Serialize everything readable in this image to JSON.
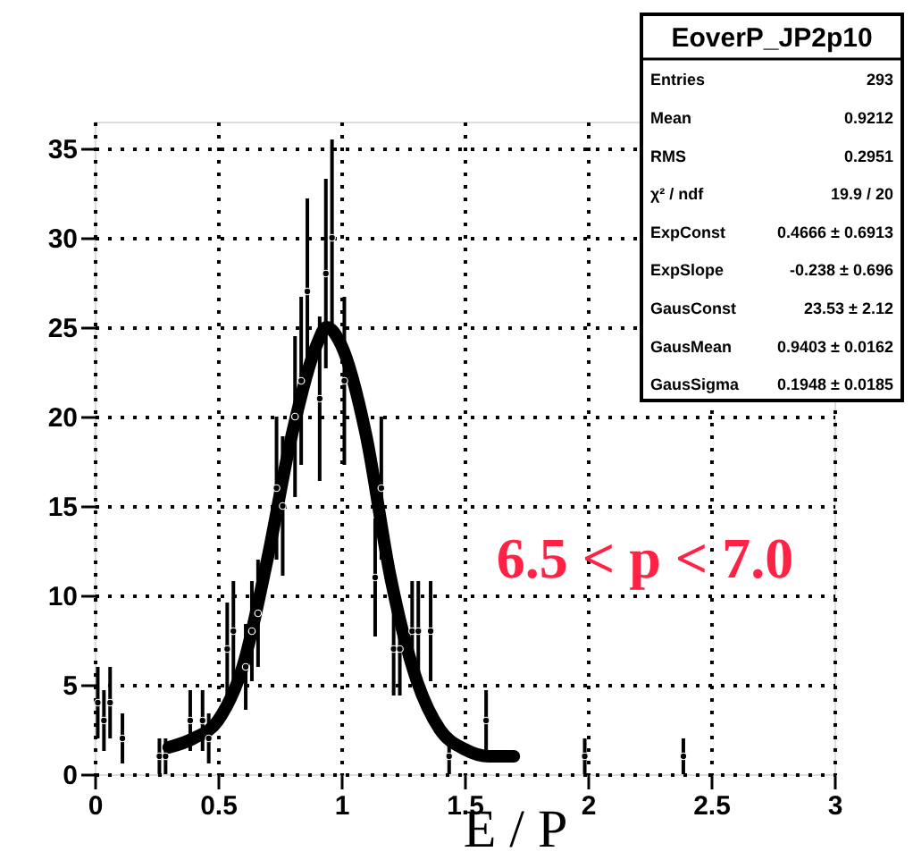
{
  "chart_data": {
    "type": "scatter",
    "xlabel": "E / P",
    "xlim": [
      0,
      3
    ],
    "ylim": [
      0,
      36.5
    ],
    "xticks": [
      0,
      0.5,
      1,
      1.5,
      2,
      2.5,
      3
    ],
    "yticks": [
      0,
      5,
      10,
      15,
      20,
      25,
      30,
      35
    ],
    "grid": true,
    "series": [
      {
        "color": "#000000",
        "marker": "circle",
        "x": [
          0.0125,
          0.0375,
          0.0625,
          0.1125,
          0.2625,
          0.2875,
          0.3875,
          0.4375,
          0.4625,
          0.5375,
          0.5625,
          0.6125,
          0.6375,
          0.6625,
          0.7375,
          0.7625,
          0.8125,
          0.8375,
          0.8625,
          0.9125,
          0.9375,
          0.9625,
          1.0125,
          1.1375,
          1.1625,
          1.2125,
          1.2375,
          1.2875,
          1.3125,
          1.3625,
          1.4375,
          1.5875,
          1.9875,
          2.3875
        ],
        "values": [
          4,
          3,
          4,
          2,
          1,
          1,
          3,
          3,
          2,
          7,
          8,
          6,
          8,
          9,
          16,
          15,
          20,
          22,
          27,
          21,
          28,
          30,
          22,
          11,
          16,
          7,
          7,
          8,
          8,
          8,
          1,
          3,
          1,
          1
        ],
        "errors": [
          2,
          1.7,
          2,
          1.4,
          1,
          1,
          1.7,
          1.7,
          1.4,
          2.6,
          2.8,
          2.4,
          2.8,
          3,
          4,
          3.9,
          4.5,
          4.7,
          5.2,
          4.6,
          5.3,
          5.5,
          4.7,
          3.3,
          4,
          2.6,
          2.6,
          2.8,
          2.8,
          2.8,
          1,
          1.7,
          1,
          1
        ],
        "xerrors": [
          0.0125,
          0.0125,
          0.0125,
          0.0125,
          0.0125,
          0.0125,
          0.0125,
          0.0125,
          0.0125,
          0.0125,
          0.0125,
          0.0125,
          0.0125,
          0.0125,
          0.0125,
          0.0125,
          0.0125,
          0.0125,
          0.0125,
          0.0125,
          0.0125,
          0.0125,
          0.0125,
          0.0125,
          0.0125,
          0.0125,
          0.0125,
          0.0125,
          0.0125,
          0.0125,
          0.0125,
          0.0125,
          0.0125,
          0.0125
        ]
      },
      {
        "type": "line",
        "color": "#000000",
        "x": [
          0.3,
          0.4,
          0.5,
          0.6,
          0.7,
          0.8,
          0.9,
          0.94,
          1.0,
          1.1,
          1.2,
          1.3,
          1.4,
          1.5,
          1.6,
          1.7
        ],
        "values": [
          1.5,
          2,
          3,
          6,
          12,
          19,
          24,
          25,
          24,
          19,
          11,
          5.5,
          2.5,
          1.4,
          1,
          1
        ]
      }
    ],
    "annotations": [
      "6.5 < p < 7.0",
      "EoverP_JP2p10",
      "Entries\t293",
      "Mean\t0.9212",
      "RMS\t0.2951",
      "χ² / ndf\t19.9 / 20",
      "ExpConst\t0.4666 ± 0.6913",
      "ExpSlope\t-0.238 ± 0.696",
      "GausConst\t23.53 ± 2.12",
      "GausMean\t0.9403 ± 0.0162",
      "GausSigma\t0.1948 ± 0.0185"
    ]
  }
}
